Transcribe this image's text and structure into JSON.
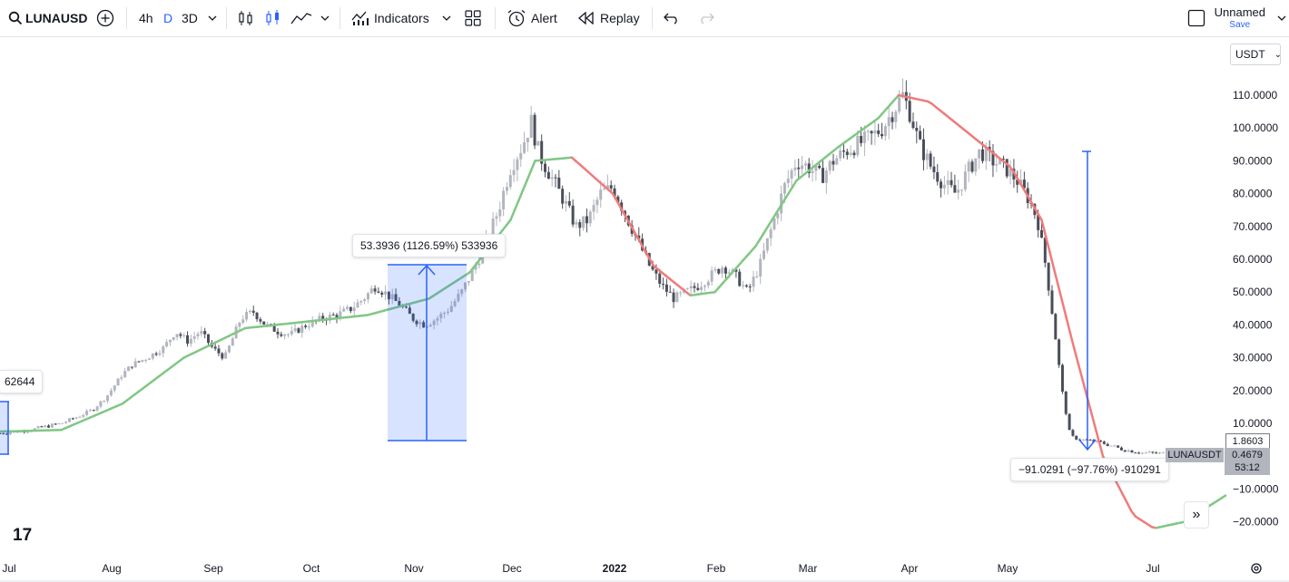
{
  "toolbar": {
    "symbol": "LUNAUSD",
    "intervals": [
      "4h",
      "D",
      "3D"
    ],
    "indicators_label": "Indicators",
    "alert_label": "Alert",
    "replay_label": "Replay",
    "layout_name": "Unnamed",
    "save_label": "Save"
  },
  "currency_button": "USDT",
  "measure_up": "53.3936 (1126.59%) 533936",
  "measure_down": "−91.0291 (−97.76%) -910291",
  "left_label": "62644",
  "price_tag": {
    "value": "1.8603",
    "symbol": "LUNAUSDT",
    "last": "0.4679",
    "countdown": "53:12"
  },
  "colors": {
    "up": "#b2b5be",
    "down": "#4a4e59",
    "ma_up": "#81c784",
    "ma_down": "#f07b7b",
    "measure": "#2962ff"
  },
  "chart_data": {
    "type": "candlestick",
    "y_ticks": [
      "110.0000",
      "100.0000",
      "90.0000",
      "80.0000",
      "70.0000",
      "60.0000",
      "50.0000",
      "40.0000",
      "30.0000",
      "20.0000",
      "10.0000",
      "−10.0000",
      "−20.0000"
    ],
    "x_ticks": [
      "Jul",
      "Aug",
      "Sep",
      "Oct",
      "Nov",
      "Dec",
      "2022",
      "Feb",
      "Mar",
      "Apr",
      "May",
      "Jul"
    ],
    "ylim": [
      -25,
      120
    ],
    "close_path": [
      [
        0,
        7
      ],
      [
        8,
        7.5
      ],
      [
        15,
        8
      ],
      [
        22,
        9
      ],
      [
        30,
        10
      ],
      [
        38,
        12
      ],
      [
        45,
        14
      ],
      [
        52,
        18
      ],
      [
        60,
        25
      ],
      [
        65,
        28
      ],
      [
        72,
        30
      ],
      [
        80,
        33
      ],
      [
        86,
        38
      ],
      [
        92,
        35
      ],
      [
        98,
        38
      ],
      [
        104,
        33
      ],
      [
        110,
        30
      ],
      [
        118,
        42
      ],
      [
        124,
        44
      ],
      [
        130,
        40
      ],
      [
        136,
        38
      ],
      [
        142,
        37
      ],
      [
        150,
        40
      ],
      [
        158,
        42
      ],
      [
        165,
        43
      ],
      [
        172,
        45
      ],
      [
        178,
        48
      ],
      [
        184,
        52
      ],
      [
        190,
        49
      ],
      [
        196,
        46
      ],
      [
        202,
        42
      ],
      [
        208,
        40
      ],
      [
        214,
        42
      ],
      [
        220,
        45
      ],
      [
        226,
        50
      ],
      [
        232,
        57
      ],
      [
        238,
        65
      ],
      [
        244,
        75
      ],
      [
        250,
        88
      ],
      [
        256,
        95
      ],
      [
        260,
        102
      ],
      [
        264,
        92
      ],
      [
        270,
        85
      ],
      [
        276,
        78
      ],
      [
        282,
        70
      ],
      [
        288,
        72
      ],
      [
        294,
        80
      ],
      [
        300,
        82
      ],
      [
        306,
        74
      ],
      [
        312,
        66
      ],
      [
        318,
        58
      ],
      [
        324,
        52
      ],
      [
        330,
        48
      ],
      [
        336,
        50
      ],
      [
        342,
        52
      ],
      [
        348,
        55
      ],
      [
        354,
        58
      ],
      [
        360,
        55
      ],
      [
        366,
        50
      ],
      [
        372,
        58
      ],
      [
        378,
        70
      ],
      [
        384,
        82
      ],
      [
        390,
        90
      ],
      [
        396,
        88
      ],
      [
        402,
        85
      ],
      [
        408,
        90
      ],
      [
        414,
        93
      ],
      [
        420,
        95
      ],
      [
        426,
        97
      ],
      [
        432,
        100
      ],
      [
        438,
        106
      ],
      [
        442,
        110
      ],
      [
        446,
        104
      ],
      [
        450,
        95
      ],
      [
        456,
        88
      ],
      [
        462,
        83
      ],
      [
        468,
        80
      ],
      [
        474,
        87
      ],
      [
        480,
        93
      ],
      [
        486,
        90
      ],
      [
        492,
        88
      ],
      [
        498,
        84
      ],
      [
        504,
        78
      ],
      [
        508,
        72
      ],
      [
        512,
        58
      ],
      [
        516,
        40
      ],
      [
        520,
        20
      ],
      [
        524,
        6
      ],
      [
        530,
        5
      ],
      [
        540,
        4
      ],
      [
        550,
        2
      ],
      [
        560,
        1
      ],
      [
        570,
        0.8
      ],
      [
        580,
        0.6
      ],
      [
        600,
        0.5
      ]
    ],
    "ma_path": [
      [
        0,
        7.5
      ],
      [
        30,
        8
      ],
      [
        60,
        16
      ],
      [
        90,
        30
      ],
      [
        120,
        39
      ],
      [
        150,
        41
      ],
      [
        180,
        43
      ],
      [
        210,
        48
      ],
      [
        230,
        56
      ],
      [
        250,
        72
      ],
      [
        262,
        90
      ],
      [
        280,
        91
      ],
      [
        300,
        80
      ],
      [
        320,
        58
      ],
      [
        338,
        49
      ],
      [
        350,
        50
      ],
      [
        370,
        64
      ],
      [
        390,
        84
      ],
      [
        410,
        94
      ],
      [
        430,
        103
      ],
      [
        440,
        110
      ],
      [
        455,
        108
      ],
      [
        475,
        98
      ],
      [
        495,
        88
      ],
      [
        510,
        72
      ],
      [
        525,
        35
      ],
      [
        540,
        0
      ],
      [
        555,
        -18
      ],
      [
        565,
        -22
      ],
      [
        580,
        -20
      ],
      [
        600,
        -12
      ]
    ]
  }
}
